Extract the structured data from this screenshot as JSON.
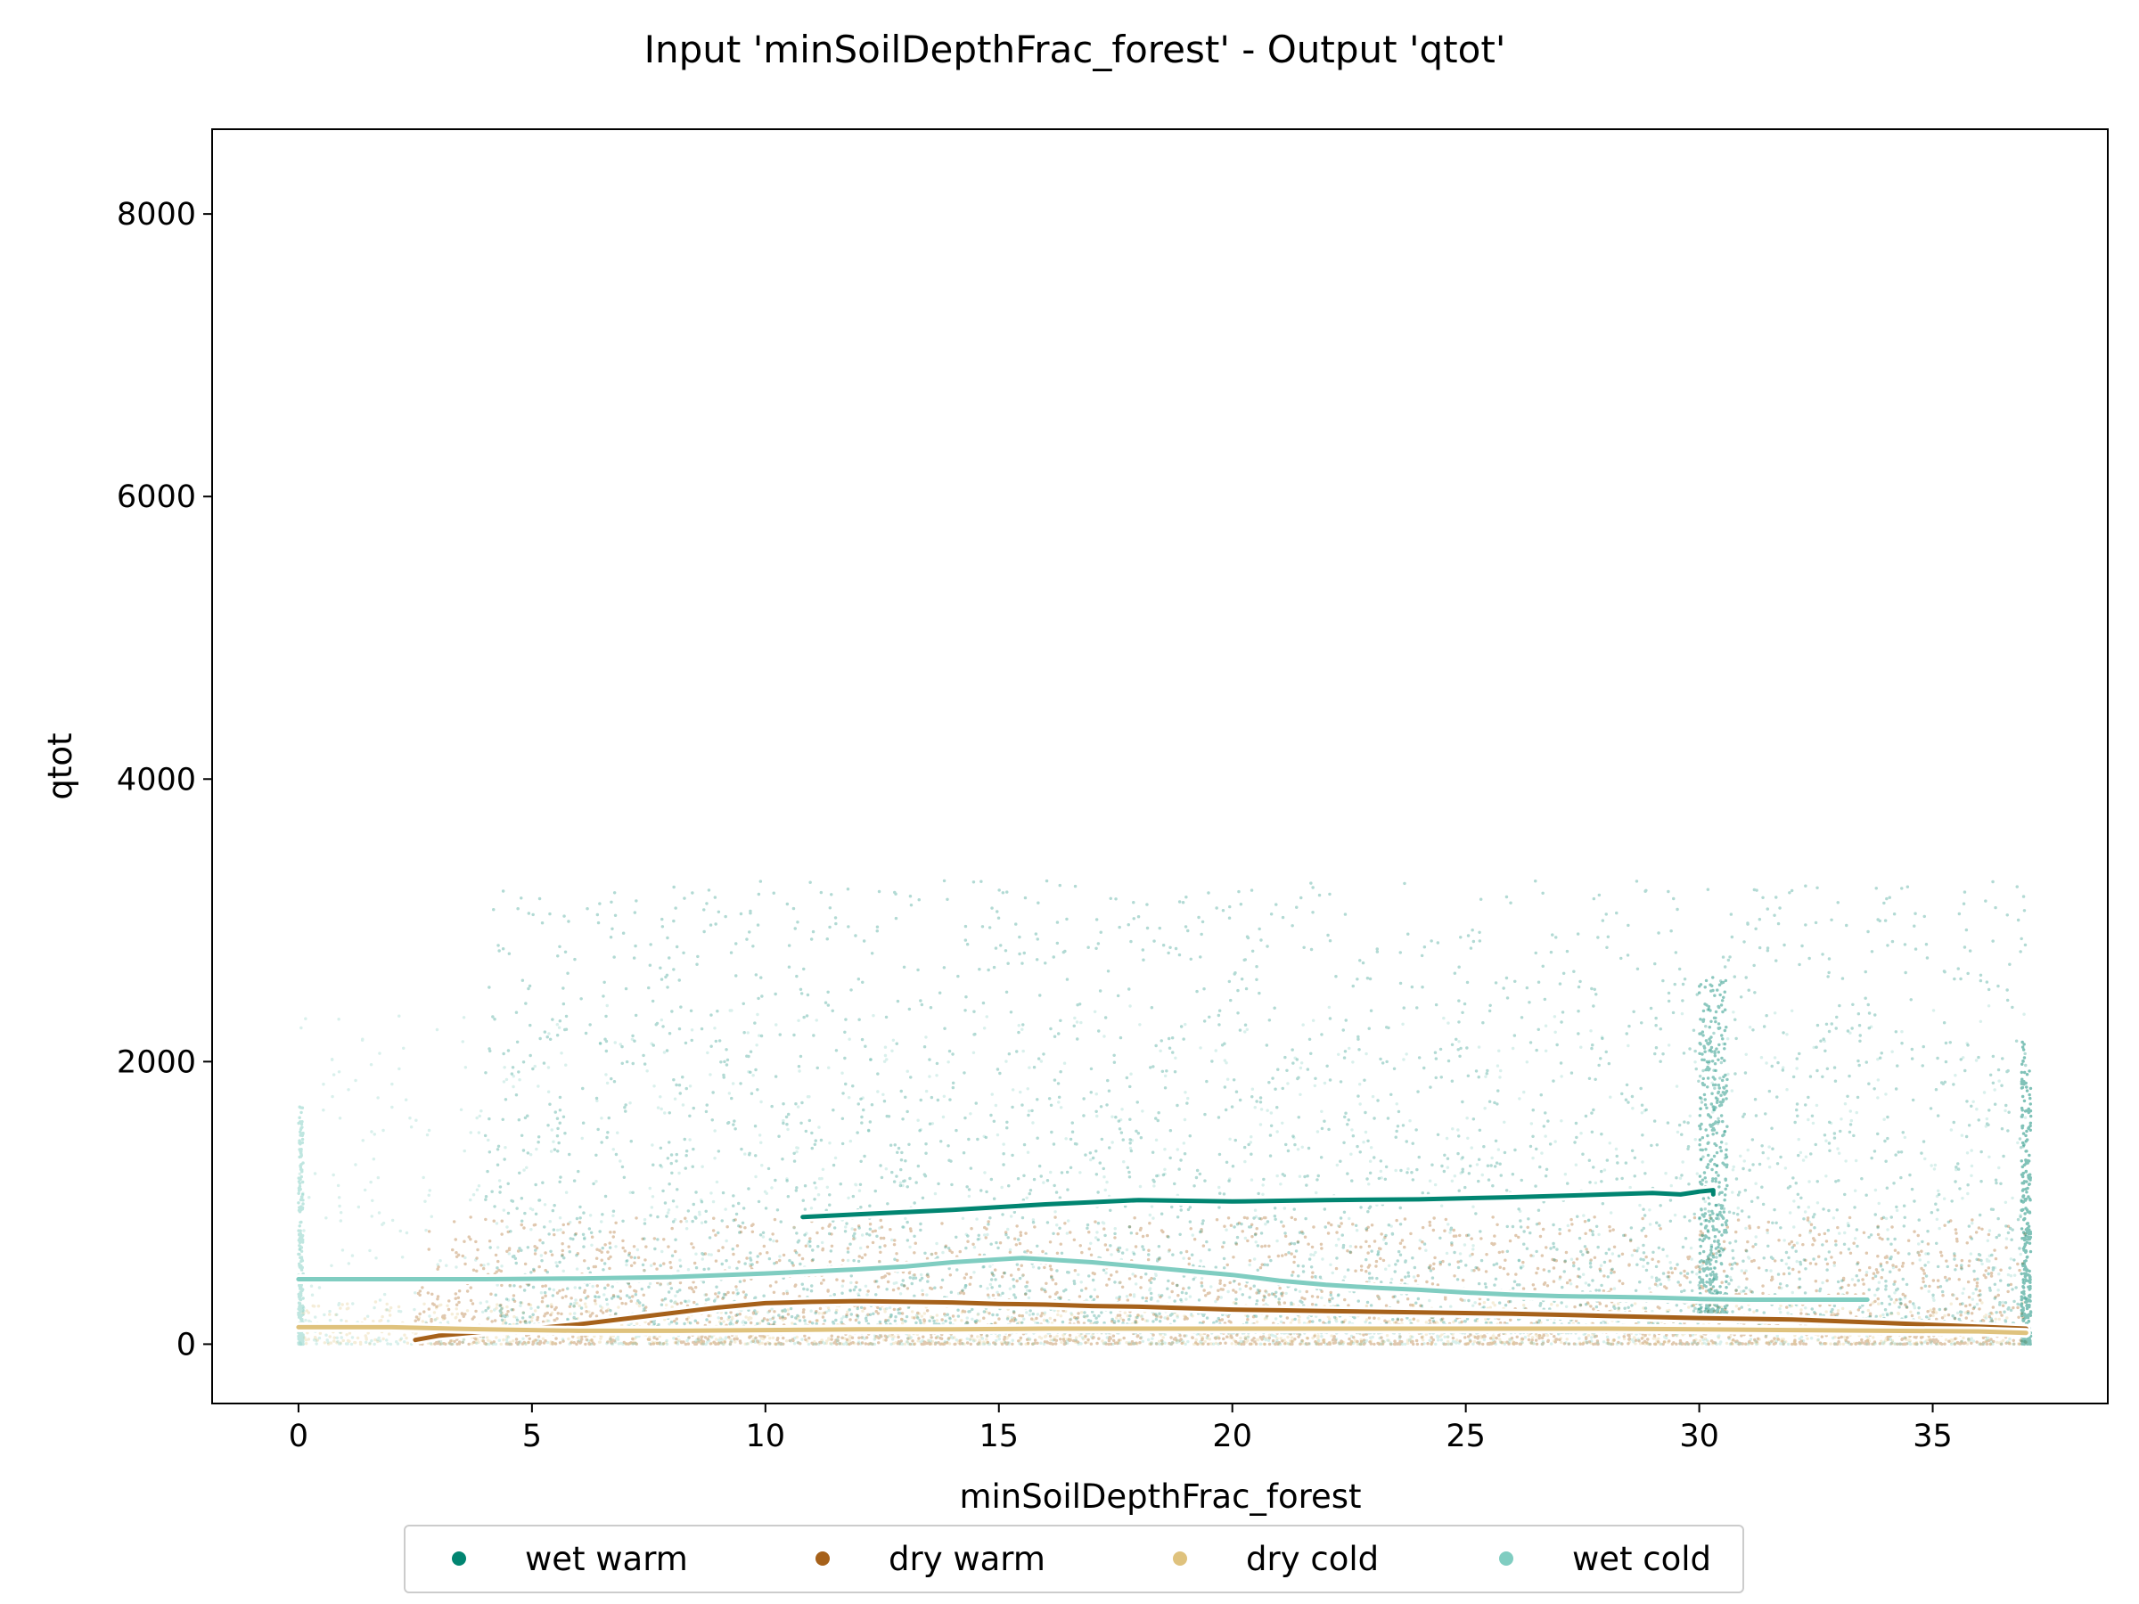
{
  "chart_data": {
    "type": "scatter",
    "title": "Input 'minSoilDepthFrac_forest' - Output 'qtot'",
    "xlabel": "minSoilDepthFrac_forest",
    "ylabel": "qtot",
    "xlim": [
      -1.85,
      38.75
    ],
    "ylim": [
      -420,
      8600
    ],
    "xticks": [
      0,
      5,
      10,
      15,
      20,
      25,
      30,
      35
    ],
    "yticks": [
      0,
      2000,
      4000,
      6000,
      8000
    ],
    "grid": false,
    "legend_position": "bottom-center",
    "series": [
      {
        "name": "wet warm",
        "color": "#018571",
        "trend": {
          "x": [
            10.8,
            12,
            14,
            16,
            18,
            20,
            22,
            24,
            26,
            28,
            29,
            29.6,
            30,
            30.3,
            30.3
          ],
          "y": [
            900,
            920,
            950,
            990,
            1020,
            1010,
            1020,
            1025,
            1040,
            1060,
            1070,
            1060,
            1080,
            1090,
            1060
          ]
        }
      },
      {
        "name": "dry warm",
        "color": "#a6611a",
        "trend": {
          "x": [
            2.5,
            3,
            4,
            5,
            6,
            7,
            8,
            9,
            10,
            11,
            12,
            13,
            14,
            15,
            16,
            17,
            18,
            19,
            20,
            21,
            22,
            24,
            26,
            28,
            30,
            32,
            34,
            35.5,
            37
          ],
          "y": [
            30,
            60,
            90,
            110,
            140,
            180,
            220,
            260,
            290,
            300,
            305,
            300,
            295,
            285,
            280,
            270,
            265,
            255,
            245,
            240,
            235,
            225,
            215,
            200,
            185,
            175,
            150,
            130,
            110
          ]
        }
      },
      {
        "name": "dry cold",
        "color": "#dfc27d",
        "trend": {
          "x": [
            0,
            2,
            4,
            6,
            8,
            10,
            12,
            14,
            16,
            18,
            20,
            22,
            24,
            26,
            28,
            30,
            32,
            34,
            36,
            37
          ],
          "y": [
            120,
            120,
            105,
            95,
            95,
            100,
            105,
            105,
            110,
            110,
            110,
            110,
            110,
            110,
            110,
            105,
            100,
            95,
            90,
            80
          ]
        }
      },
      {
        "name": "wet cold",
        "color": "#80cdc1",
        "trend": {
          "x": [
            0,
            2,
            4,
            6,
            8,
            10,
            12,
            13,
            14,
            15,
            15.5,
            16,
            17,
            18,
            19,
            20,
            21,
            22,
            23,
            24,
            25,
            26,
            27,
            28,
            29,
            30,
            31,
            32,
            33,
            33.6
          ],
          "y": [
            460,
            460,
            460,
            465,
            475,
            500,
            530,
            550,
            580,
            600,
            610,
            600,
            580,
            550,
            520,
            490,
            450,
            420,
            400,
            385,
            365,
            350,
            340,
            335,
            330,
            320,
            315,
            315,
            315,
            315
          ]
        }
      }
    ]
  }
}
